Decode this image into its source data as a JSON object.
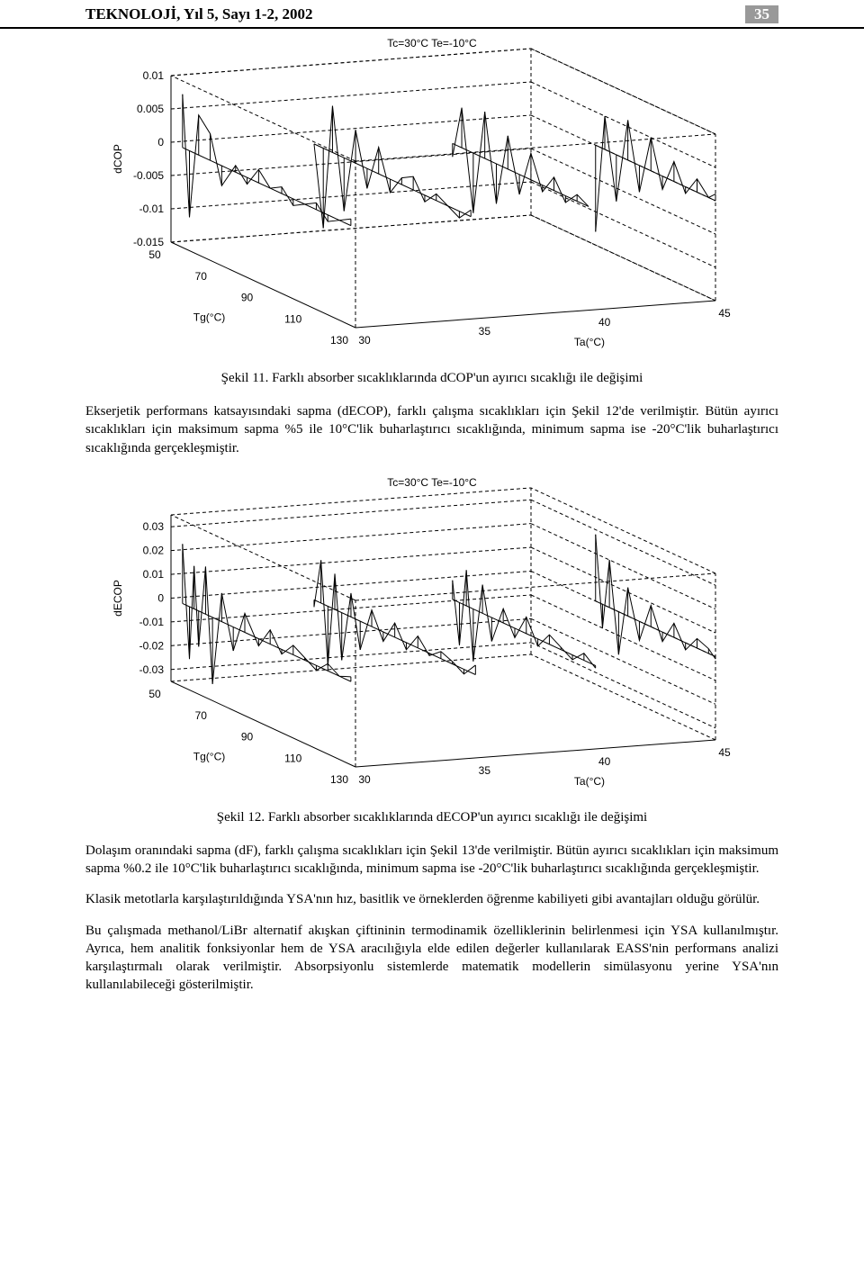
{
  "header": {
    "journal": "TEKNOLOJİ, Yıl 5, Sayı 1-2, 2002",
    "page_num": "35"
  },
  "figure11": {
    "type": "3d-surface-lines",
    "title": "Tc=30°C Te=-10°C",
    "title_fontsize": 13,
    "x_axis": {
      "label": "Tg(°C)",
      "ticks": [
        50,
        70,
        90,
        110,
        130
      ],
      "min": 50,
      "max": 130
    },
    "y_axis": {
      "label": "Ta(°C)",
      "ticks": [
        30,
        35,
        40,
        45
      ],
      "min": 30,
      "max": 45
    },
    "z_axis": {
      "label": "dCOP",
      "ticks": [
        0.01,
        0.005,
        0,
        -0.005,
        -0.01,
        -0.015
      ],
      "min": -0.015,
      "max": 0.01
    },
    "background_color": "#ffffff",
    "axis_color": "#000000",
    "line_color": "#000000",
    "line_width": 1,
    "caption": "Şekil 11. Farklı absorber sıcaklıklarında dCOP'un ayırıcı sıcaklığı ile değişimi",
    "series": [
      {
        "ta": 30,
        "tg": [
          55,
          58,
          62,
          67,
          72,
          78,
          83,
          88,
          93,
          98,
          103,
          108,
          113,
          118,
          123,
          128
        ],
        "dcop": [
          0.008,
          -0.01,
          0.006,
          0.004,
          -0.003,
          0.001,
          -0.001,
          0.002,
          0.0,
          0.001,
          -0.001,
          0.0,
          0.001,
          -0.001,
          0.0,
          0.001
        ]
      },
      {
        "ta": 35,
        "tg": [
          60,
          64,
          68,
          73,
          78,
          83,
          88,
          93,
          98,
          103,
          108,
          113,
          118,
          123,
          128
        ],
        "dcop": [
          0.0,
          -0.012,
          0.007,
          -0.008,
          0.005,
          -0.003,
          0.004,
          -0.002,
          0.001,
          0.002,
          -0.001,
          0.001,
          0.0,
          -0.001,
          0.001
        ]
      },
      {
        "ta": 40,
        "tg": [
          68,
          72,
          77,
          82,
          87,
          92,
          97,
          102,
          107,
          112,
          117,
          122,
          127
        ],
        "dcop": [
          -0.002,
          0.006,
          -0.009,
          0.007,
          -0.006,
          0.005,
          -0.003,
          0.004,
          -0.001,
          0.002,
          -0.001,
          0.001,
          0.0
        ]
      },
      {
        "ta": 45,
        "tg": [
          78,
          82,
          87,
          92,
          97,
          102,
          107,
          112,
          117,
          122,
          127,
          130
        ],
        "dcop": [
          -0.013,
          0.005,
          -0.007,
          0.006,
          -0.004,
          0.005,
          -0.002,
          0.003,
          -0.001,
          0.002,
          0.0,
          0.001
        ]
      }
    ]
  },
  "para1": "Ekserjetik performans katsayısındaki sapma (dECOP), farklı çalışma sıcaklıkları için Şekil 12'de verilmiştir. Bütün ayırıcı sıcaklıkları için maksimum sapma %5 ile 10°C'lik buharlaştırıcı sıcaklığında, minimum sapma ise -20°C'lik buharlaştırıcı sıcaklığında gerçekleşmiştir.",
  "figure12": {
    "type": "3d-surface-lines",
    "title": "Tc=30°C Te=-10°C",
    "title_fontsize": 13,
    "x_axis": {
      "label": "Tg(°C)",
      "ticks": [
        50,
        70,
        90,
        110,
        130
      ],
      "min": 50,
      "max": 130
    },
    "y_axis": {
      "label": "Ta(°C)",
      "ticks": [
        30,
        35,
        40,
        45
      ],
      "min": 30,
      "max": 45
    },
    "z_axis": {
      "label": "dECOP",
      "ticks": [
        0.03,
        0.02,
        0.01,
        0,
        -0.01,
        -0.02,
        -0.03
      ],
      "min": -0.035,
      "max": 0.035
    },
    "background_color": "#ffffff",
    "axis_color": "#000000",
    "line_color": "#000000",
    "line_width": 1,
    "caption": "Şekil 12. Farklı absorber sıcaklıklarında dECOP'un ayırıcı sıcaklığı ile değişimi",
    "series": [
      {
        "ta": 30,
        "tg": [
          55,
          58,
          60,
          62,
          65,
          68,
          72,
          77,
          82,
          88,
          93,
          98,
          103,
          108,
          113,
          118,
          123,
          128
        ],
        "dcop": [
          0.025,
          -0.022,
          0.018,
          -0.015,
          0.02,
          -0.028,
          0.012,
          -0.01,
          0.008,
          -0.003,
          0.006,
          -0.002,
          0.004,
          0.001,
          -0.002,
          0.003,
          0.0,
          0.002
        ]
      },
      {
        "ta": 35,
        "tg": [
          60,
          63,
          66,
          69,
          72,
          76,
          80,
          85,
          90,
          95,
          100,
          105,
          110,
          115,
          120,
          125,
          130
        ],
        "dcop": [
          -0.003,
          0.018,
          -0.025,
          0.015,
          -0.02,
          0.01,
          -0.012,
          0.007,
          -0.004,
          0.006,
          -0.003,
          0.005,
          -0.001,
          0.003,
          0.001,
          -0.002,
          0.004
        ]
      },
      {
        "ta": 40,
        "tg": [
          68,
          71,
          74,
          77,
          81,
          85,
          90,
          95,
          100,
          105,
          110,
          115,
          120,
          125,
          130
        ],
        "dcop": [
          0.008,
          -0.018,
          0.015,
          -0.022,
          0.012,
          -0.01,
          0.006,
          -0.004,
          0.007,
          -0.003,
          0.004,
          0.001,
          -0.002,
          0.003,
          -0.001
        ]
      },
      {
        "ta": 45,
        "tg": [
          78,
          81,
          84,
          88,
          92,
          97,
          102,
          107,
          112,
          117,
          122,
          127,
          130
        ],
        "dcop": [
          0.028,
          -0.01,
          0.02,
          -0.018,
          0.012,
          -0.008,
          0.009,
          -0.004,
          0.006,
          -0.003,
          0.004,
          0.002,
          -0.001
        ]
      }
    ]
  },
  "para2": "Dolaşım oranındaki sapma (dF), farklı çalışma sıcaklıkları için Şekil 13'de verilmiştir. Bütün ayırıcı sıcaklıkları için maksimum sapma %0.2 ile 10°C'lik buharlaştırıcı sıcaklığında, minimum sapma ise -20°C'lik buharlaştırıcı sıcaklığında gerçekleşmiştir.",
  "para3": "Klasik metotlarla karşılaştırıldığında YSA'nın hız, basitlik ve örneklerden öğrenme kabiliyeti gibi avantajları olduğu görülür.",
  "para4": "Bu çalışmada methanol/LiBr alternatif akışkan çiftininin termodinamik özelliklerinin belirlenmesi için YSA kullanılmıştır. Ayrıca, hem analitik fonksiyonlar hem de YSA aracılığıyla elde edilen değerler kullanılarak EASS'nin performans analizi karşılaştırmalı olarak verilmiştir. Absorpsiyonlu sistemlerde matematik modellerin simülasyonu yerine YSA'nın kullanılabileceği gösterilmiştir."
}
